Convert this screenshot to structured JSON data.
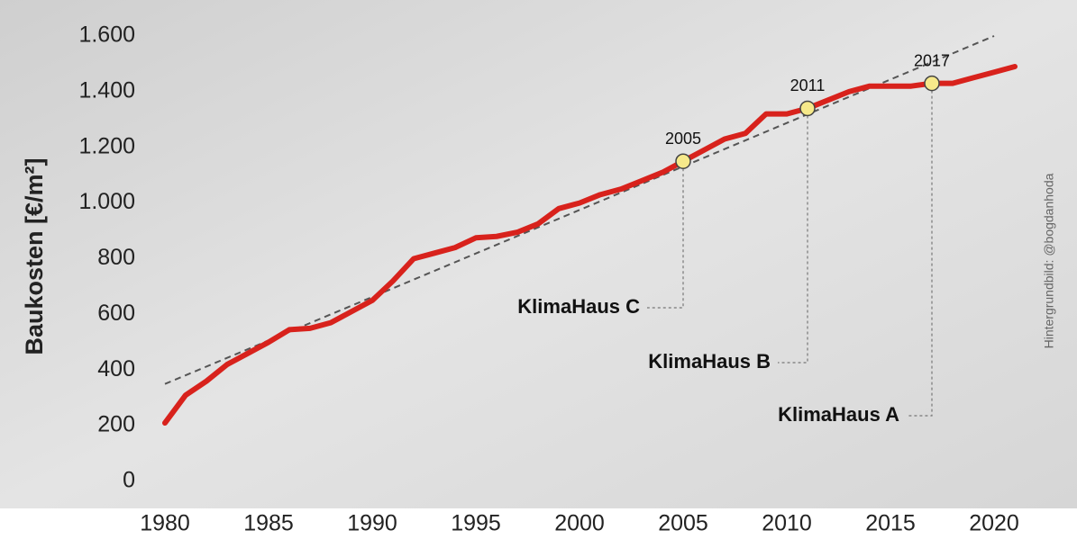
{
  "chart_data": {
    "type": "line",
    "y_label": "Baukosten [€/m²]",
    "credit": "Hintergrundbild: @bogdanhoda",
    "xlim": [
      1978.5,
      2023.5
    ],
    "ylim": [
      -110,
      1680
    ],
    "xticks": [
      1980,
      1985,
      1990,
      1995,
      2000,
      2005,
      2010,
      2015,
      2020
    ],
    "yticks": [
      {
        "value": 0,
        "label": "0"
      },
      {
        "value": 200,
        "label": "200"
      },
      {
        "value": 400,
        "label": "400"
      },
      {
        "value": 600,
        "label": "600"
      },
      {
        "value": 800,
        "label": "800"
      },
      {
        "value": 1000,
        "label": "1.000"
      },
      {
        "value": 1200,
        "label": "1.200"
      },
      {
        "value": 1400,
        "label": "1.400"
      },
      {
        "value": 1600,
        "label": "1.600"
      }
    ],
    "series": [
      {
        "color": "#d8221c",
        "x": [
          1980,
          1981,
          1982,
          1983,
          1984,
          1985,
          1986,
          1987,
          1988,
          1989,
          1990,
          1991,
          1992,
          1993,
          1994,
          1995,
          1996,
          1997,
          1998,
          1999,
          2000,
          2001,
          2002,
          2003,
          2004,
          2005,
          2006,
          2007,
          2008,
          2009,
          2010,
          2011,
          2012,
          2013,
          2014,
          2015,
          2016,
          2017,
          2018,
          2019,
          2020,
          2021
        ],
        "values": [
          210,
          310,
          360,
          420,
          460,
          500,
          545,
          550,
          570,
          610,
          650,
          720,
          800,
          820,
          840,
          875,
          880,
          895,
          925,
          980,
          1000,
          1030,
          1050,
          1080,
          1110,
          1150,
          1190,
          1230,
          1250,
          1320,
          1320,
          1340,
          1370,
          1400,
          1420,
          1420,
          1420,
          1430,
          1430,
          1450,
          1470,
          1490
        ]
      }
    ],
    "trend": {
      "color": "#555555",
      "x": [
        1980,
        2020
      ],
      "values": [
        350,
        1600
      ]
    },
    "markers": [
      {
        "label": "2005",
        "x": 2005,
        "value": 1150,
        "note": "KlimaHaus C"
      },
      {
        "label": "2011",
        "x": 2011,
        "value": 1340,
        "note": "KlimaHaus B"
      },
      {
        "label": "2017",
        "x": 2017,
        "value": 1430,
        "note": "KlimaHaus A"
      }
    ]
  }
}
